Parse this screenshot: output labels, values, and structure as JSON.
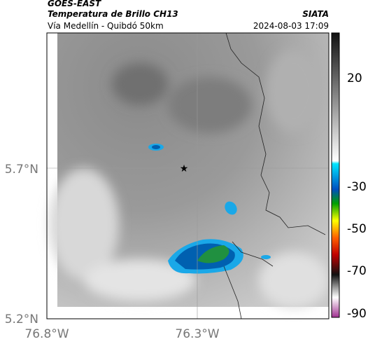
{
  "header": {
    "satellite": "GOES-EAST",
    "product": "Temperatura de Brillo CH13",
    "agency": "SIATA",
    "route": "Vía Medellín - Quibdó 50km",
    "timestamp": "2024-08-03 17:09"
  },
  "axes": {
    "lat_ticks": [
      "5.7°N",
      "5.2°N"
    ],
    "lon_ticks": [
      "76.8°W",
      "76.3°W"
    ]
  },
  "colorbar": {
    "ticks": [
      20,
      -30,
      -50,
      -70,
      -90
    ]
  }
}
